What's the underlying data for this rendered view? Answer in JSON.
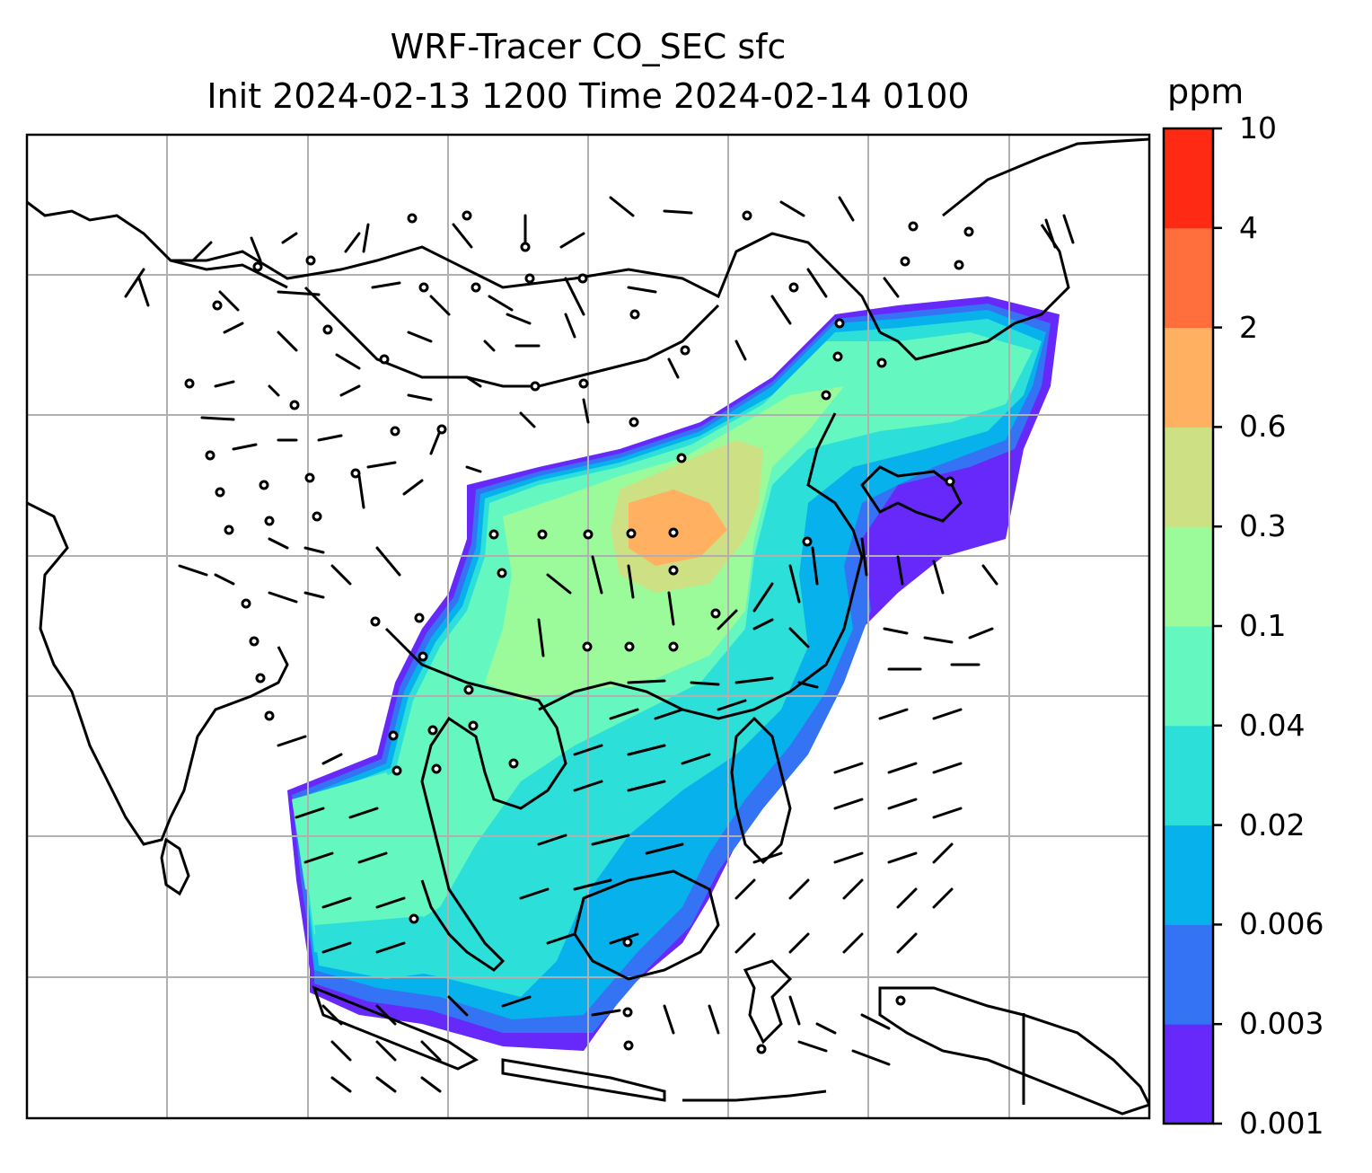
{
  "title": "WRF-Tracer CO_SEC sfc",
  "subtitle": "Init 2024-02-13 1200 Time 2024-02-14 0100",
  "colorbar": {
    "unit": "ppm",
    "levels": [
      "0.001",
      "0.003",
      "0.006",
      "0.02",
      "0.04",
      "0.1",
      "0.3",
      "0.6",
      "2",
      "4",
      "10"
    ],
    "colors": [
      "#6629fa",
      "#3473f3",
      "#07b1ec",
      "#2ddfd9",
      "#64f8c0",
      "#9bfb9a",
      "#cde084",
      "#ffb061",
      "#ff6e3c",
      "#ff2a14"
    ]
  },
  "chart_data": {
    "type": "heatmap",
    "variable": "CO_SEC",
    "level": "sfc",
    "init": "2024-02-13 1200",
    "valid_time": "2024-02-14 0100",
    "units": "ppm",
    "overlays": [
      "coastlines",
      "country borders",
      "gridlines",
      "wind barbs"
    ],
    "grid": true
  }
}
